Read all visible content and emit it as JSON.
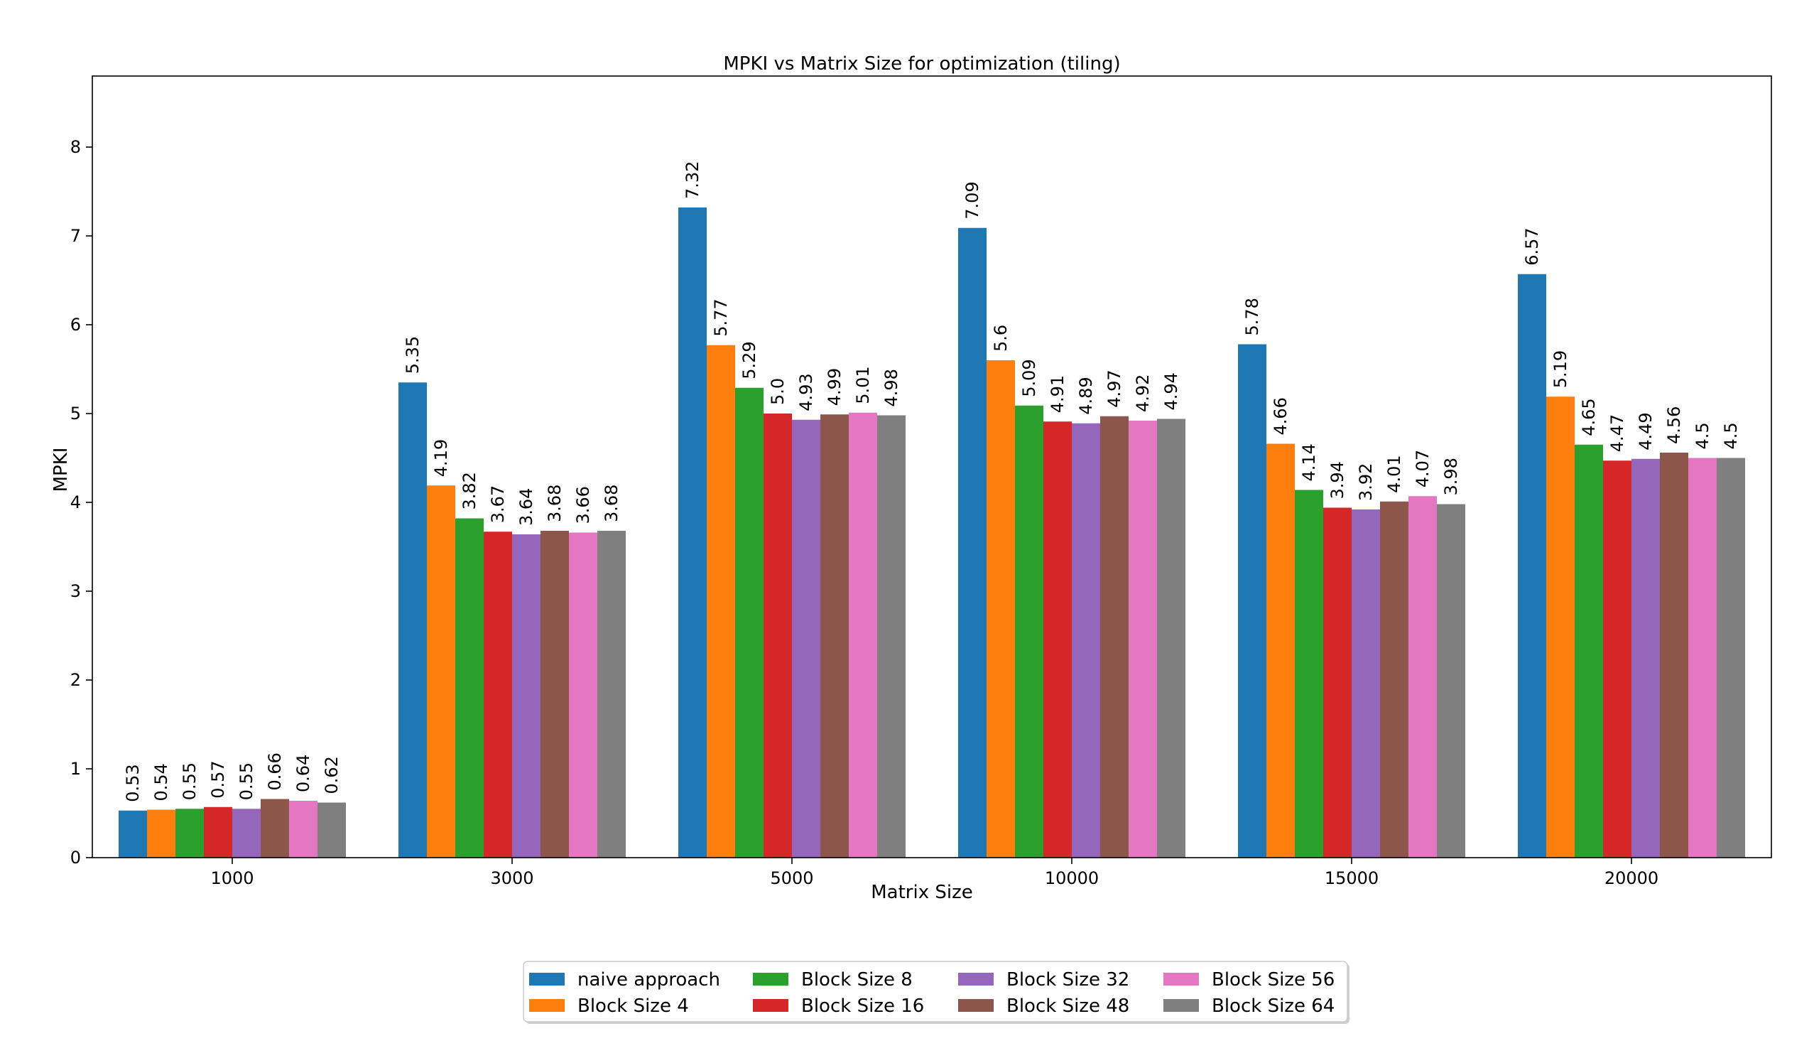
{
  "chart_data": {
    "type": "bar",
    "title": "MPKI vs Matrix Size for optimization (tiling)",
    "xlabel": "Matrix Size",
    "ylabel": "MPKI",
    "ylim": [
      0,
      8.8
    ],
    "yticks": [
      "0",
      "1",
      "2",
      "3",
      "4",
      "5",
      "6",
      "7",
      "8"
    ],
    "categories": [
      "1000",
      "3000",
      "5000",
      "10000",
      "15000",
      "20000"
    ],
    "legend_position": "bottom-center",
    "grid": false,
    "series": [
      {
        "name": "naive approach",
        "color": "#1f77b4",
        "values": [
          0.53,
          5.35,
          7.32,
          7.09,
          5.78,
          6.57
        ],
        "labels": [
          "0.53",
          "5.35",
          "7.32",
          "7.09",
          "5.78",
          "6.57"
        ]
      },
      {
        "name": "Block Size 4",
        "color": "#ff7f0e",
        "values": [
          0.54,
          4.19,
          5.77,
          5.6,
          4.66,
          5.19
        ],
        "labels": [
          "0.54",
          "4.19",
          "5.77",
          "5.6",
          "4.66",
          "5.19"
        ]
      },
      {
        "name": "Block Size 8",
        "color": "#2ca02c",
        "values": [
          0.55,
          3.82,
          5.29,
          5.09,
          4.14,
          4.65
        ],
        "labels": [
          "0.55",
          "3.82",
          "5.29",
          "5.09",
          "4.14",
          "4.65"
        ]
      },
      {
        "name": "Block Size 16",
        "color": "#d62728",
        "values": [
          0.57,
          3.67,
          5.0,
          4.91,
          3.94,
          4.47
        ],
        "labels": [
          "0.57",
          "3.67",
          "5.0",
          "4.91",
          "3.94",
          "4.47"
        ]
      },
      {
        "name": "Block Size 32",
        "color": "#9467bd",
        "values": [
          0.55,
          3.64,
          4.93,
          4.89,
          3.92,
          4.49
        ],
        "labels": [
          "0.55",
          "3.64",
          "4.93",
          "4.89",
          "3.92",
          "4.49"
        ]
      },
      {
        "name": "Block Size 48",
        "color": "#8c564b",
        "values": [
          0.66,
          3.68,
          4.99,
          4.97,
          4.01,
          4.56
        ],
        "labels": [
          "0.66",
          "3.68",
          "4.99",
          "4.97",
          "4.01",
          "4.56"
        ]
      },
      {
        "name": "Block Size 56",
        "color": "#e377c2",
        "values": [
          0.64,
          3.66,
          5.01,
          4.92,
          4.07,
          4.5
        ],
        "labels": [
          "0.64",
          "3.66",
          "5.01",
          "4.92",
          "4.07",
          "4.5"
        ]
      },
      {
        "name": "Block Size 64",
        "color": "#7f7f7f",
        "values": [
          0.62,
          3.68,
          4.98,
          4.94,
          3.98,
          4.5
        ],
        "labels": [
          "0.62",
          "3.68",
          "4.98",
          "4.94",
          "3.98",
          "4.5"
        ]
      }
    ]
  }
}
